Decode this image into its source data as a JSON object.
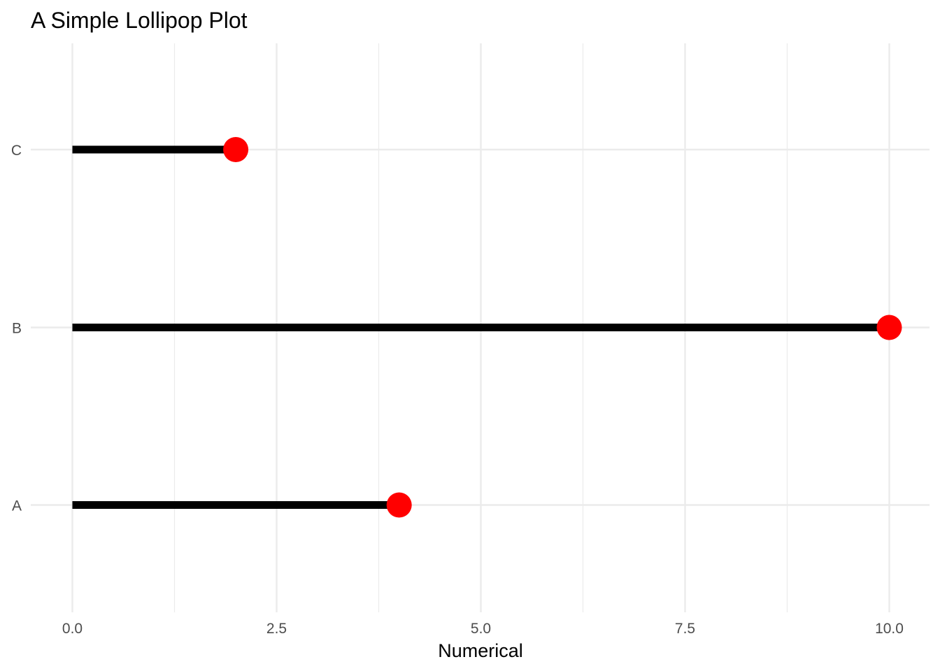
{
  "chart_data": {
    "type": "lollipop",
    "title": "A Simple Lollipop Plot",
    "xlabel": "Numerical",
    "ylabel": "",
    "categories": [
      "A",
      "B",
      "C"
    ],
    "values": [
      4,
      10,
      2
    ],
    "xlim": [
      0,
      10
    ],
    "x_ticks": [
      "0.0",
      "2.5",
      "5.0",
      "7.5",
      "10.0"
    ],
    "x_tick_values": [
      0,
      2.5,
      5,
      7.5,
      10
    ],
    "x_minor_gridlines": [
      1.25,
      3.75,
      6.25,
      8.75
    ],
    "grid": true,
    "orientation": "horizontal",
    "stick_color": "#000000",
    "dot_color": "#ff0000",
    "grid_color": "#ebebeb"
  }
}
